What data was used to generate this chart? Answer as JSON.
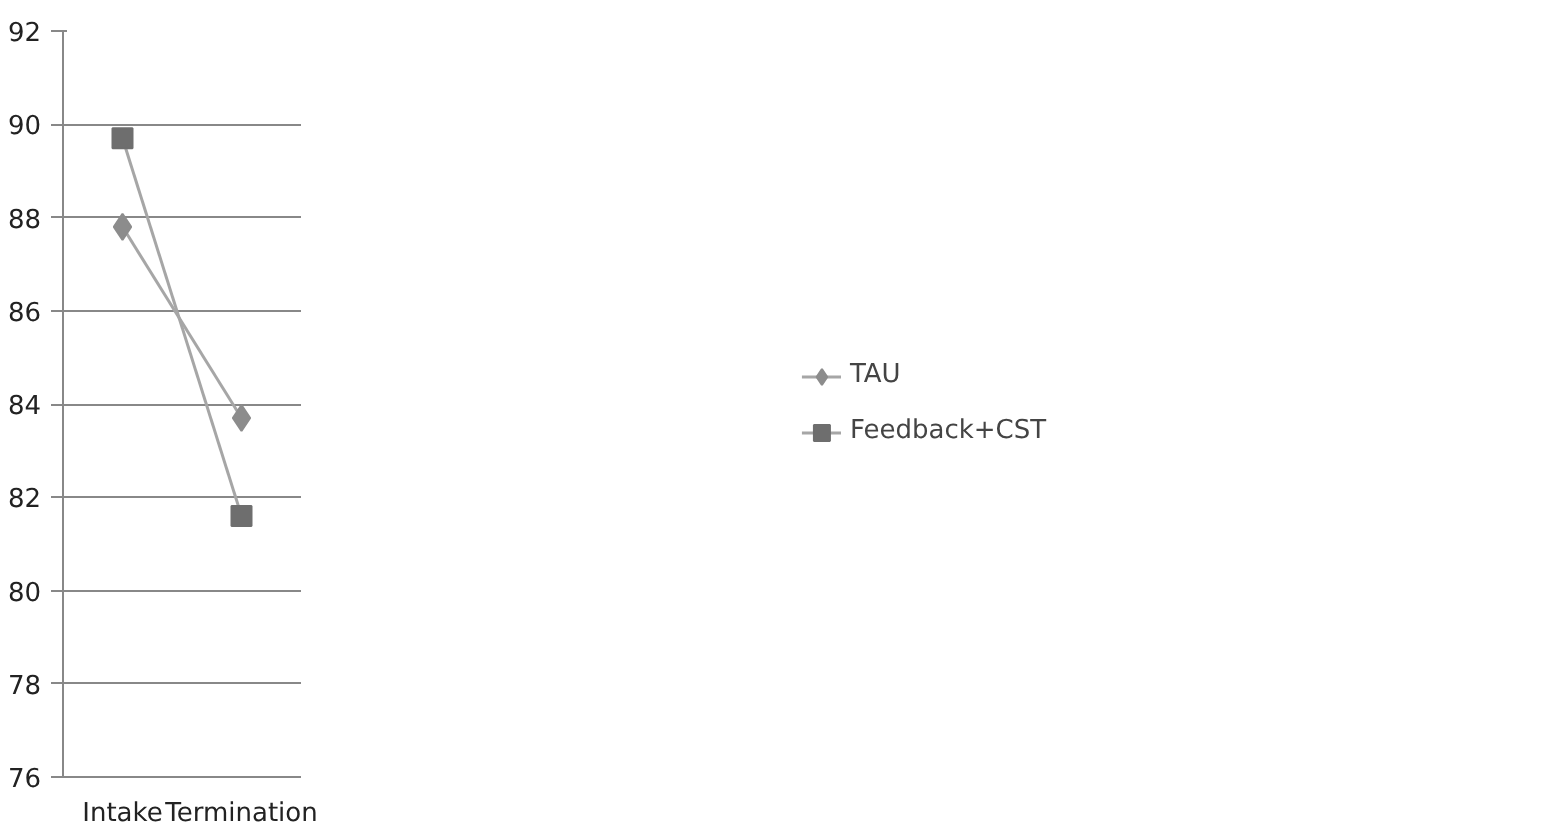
{
  "chart_data": {
    "type": "line",
    "categories": [
      "Intake",
      "Termination"
    ],
    "series": [
      {
        "name": "TAU",
        "color": "#8c8c8c",
        "marker": "diamond",
        "values": [
          87.8,
          83.7
        ]
      },
      {
        "name": "Feedback+CST",
        "color": "#6e6e6e",
        "marker": "square",
        "values": [
          89.7,
          81.6
        ]
      }
    ],
    "ylim": [
      76,
      92
    ],
    "yticks": [
      76,
      78,
      80,
      82,
      84,
      86,
      88,
      90,
      92
    ],
    "grid": "y",
    "legend": "right",
    "line_style": "solid"
  }
}
